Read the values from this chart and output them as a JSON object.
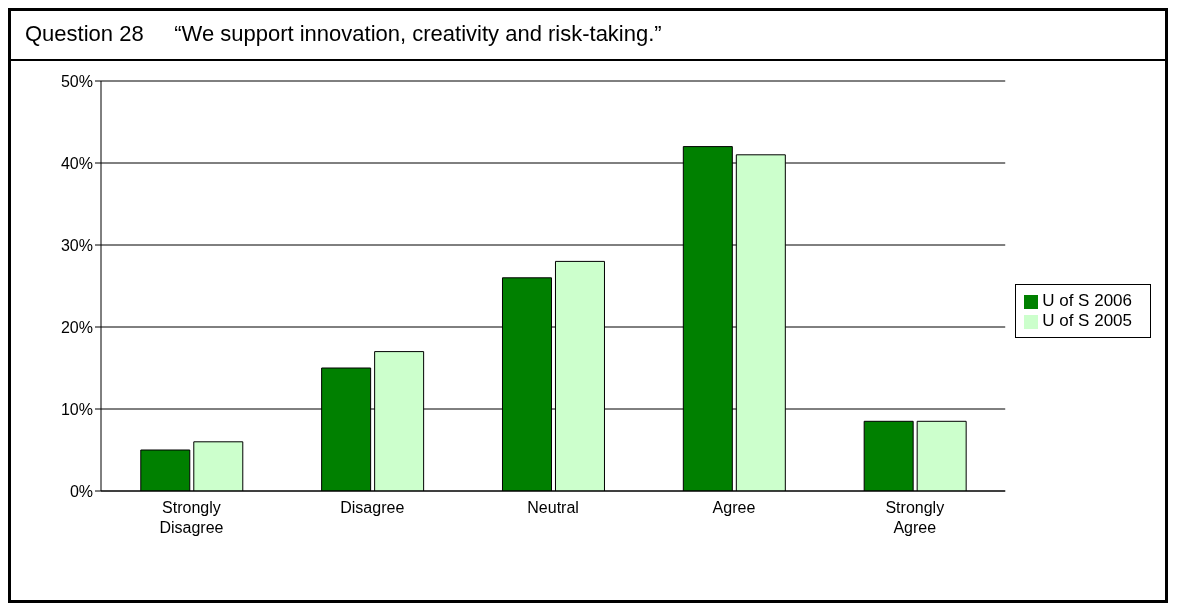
{
  "chart_data": {
    "type": "bar",
    "title": "Question 28     “We support innovation, creativity and risk-taking.”",
    "categories": [
      "Strongly Disagree",
      "Disagree",
      "Neutral",
      "Agree",
      "Strongly Agree"
    ],
    "series": [
      {
        "name": "U of S 2006",
        "color": "#008000",
        "values": [
          5,
          15,
          26,
          42,
          8.5
        ]
      },
      {
        "name": "U of S 2005",
        "color": "#ccffcc",
        "values": [
          6,
          17,
          28,
          41,
          8.5
        ]
      }
    ],
    "ylim": [
      0,
      50
    ],
    "yticks": [
      {
        "value": 0,
        "label": "0%"
      },
      {
        "value": 10,
        "label": "10%"
      },
      {
        "value": 20,
        "label": "20%"
      },
      {
        "value": 30,
        "label": "30%"
      },
      {
        "value": 40,
        "label": "40%"
      },
      {
        "value": 50,
        "label": "50%"
      }
    ],
    "grid": "y",
    "legend": "right"
  }
}
